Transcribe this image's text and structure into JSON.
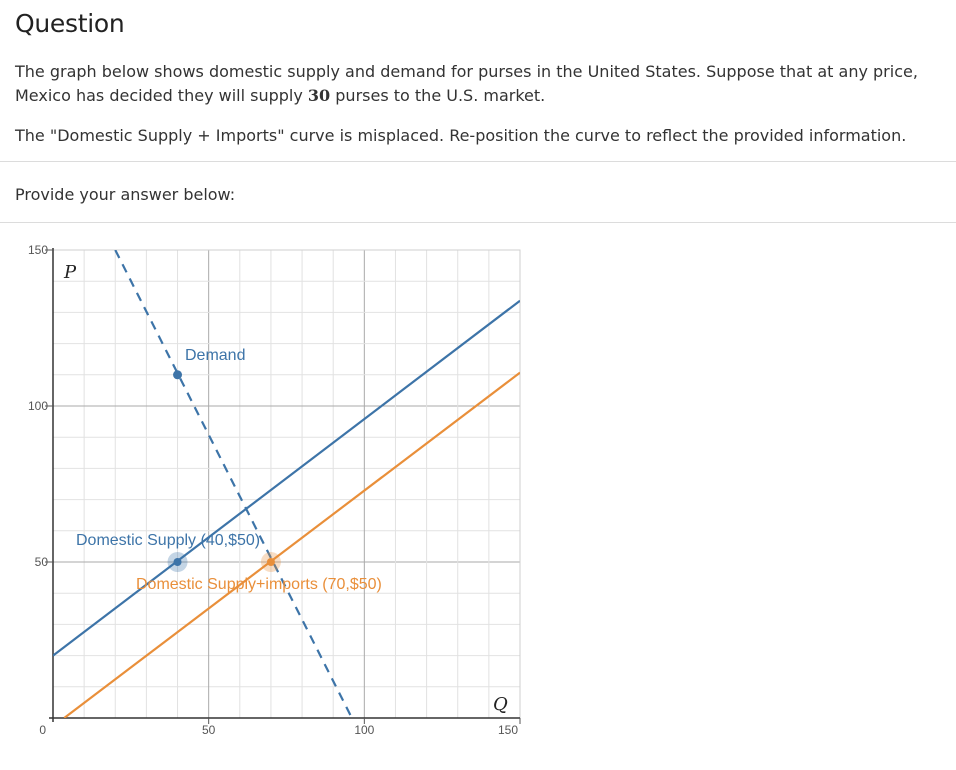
{
  "question": {
    "title": "Question",
    "para1_a": "The graph below shows domestic supply and demand for purses in the United States.  Suppose that at any price, Mexico has decided they will supply ",
    "para1_num": "30",
    "para1_b": " purses to the U.S. market.",
    "para2": "The \"Domestic Supply + Imports\" curve is misplaced. Re-position the curve to reflect the provided information."
  },
  "answer": {
    "label": "Provide your answer below:"
  },
  "chart_data": {
    "type": "line",
    "xlabel": "Q",
    "ylabel": "P",
    "xlim": [
      0,
      150
    ],
    "ylim": [
      0,
      150
    ],
    "y_tick_labels": [
      "150",
      "100",
      "50",
      "0"
    ],
    "x_tick_labels": [
      "50",
      "100",
      "150"
    ],
    "grid": true,
    "series": [
      {
        "name": "Demand",
        "style": "dashed",
        "color": "#3d74a8",
        "points": [
          [
            20,
            150
          ],
          [
            96,
            0
          ]
        ],
        "marker": [
          40,
          110
        ]
      },
      {
        "name": "Domestic Supply",
        "style": "solid",
        "color": "#3d74a8",
        "points": [
          [
            0,
            20
          ],
          [
            150,
            133.75
          ]
        ]
      },
      {
        "name": "Domestic Supply+imports",
        "style": "solid",
        "color": "#e98f3a",
        "points": [
          [
            3.6,
            0
          ],
          [
            150,
            110.7
          ]
        ]
      }
    ],
    "points": [
      {
        "label": "(40,$50)",
        "x": 40,
        "y": 50,
        "color": "#3d74a8"
      },
      {
        "label": "(70,$50)",
        "x": 70,
        "y": 50,
        "color": "#e98f3a"
      }
    ],
    "labels": {
      "demand": "Demand",
      "supply": "Domestic Supply (40,$50)",
      "supply_imports": "Domestic Supply+imports (70,$50)"
    }
  }
}
